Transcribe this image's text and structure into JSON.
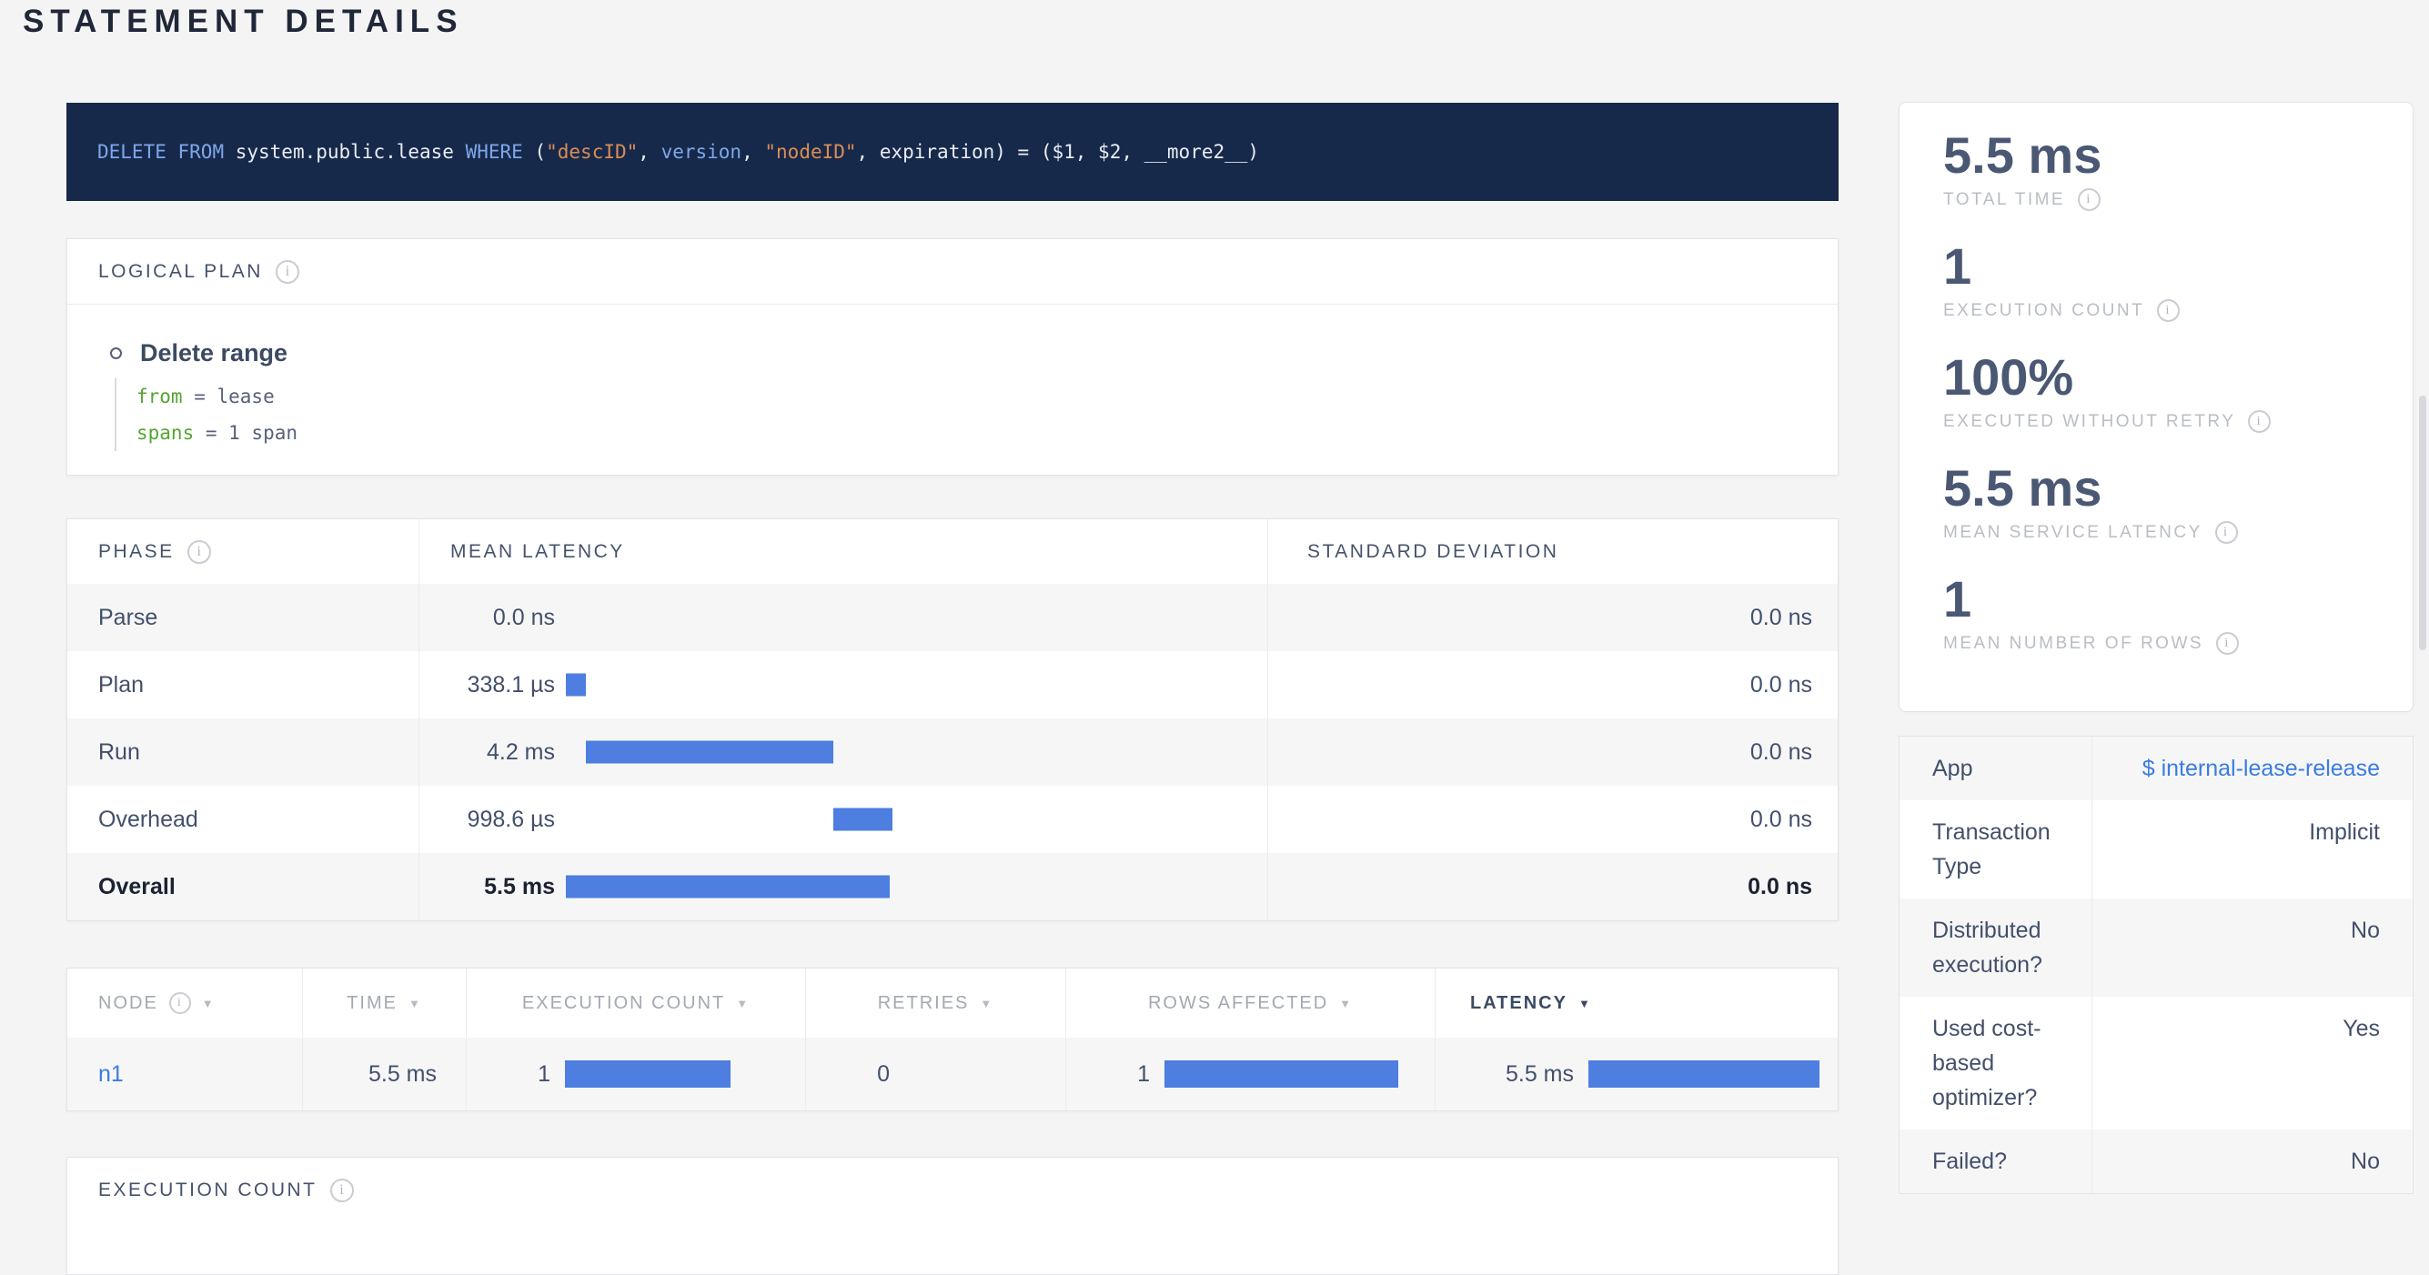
{
  "colors": {
    "accent_bar": "#4d7ee0",
    "link": "#3a7ce2",
    "sql_background": "#17294a",
    "sql_keyword": "#7ea7ea",
    "sql_string": "#d98e54",
    "plan_key_green": "#55a532"
  },
  "icons": {
    "info": "i",
    "sort_desc": "▼"
  },
  "page": {
    "title": "STATEMENT DETAILS"
  },
  "sql": {
    "tokens": [
      {
        "text": "DELETE",
        "type": "keyword"
      },
      {
        "text": " ",
        "type": "plain"
      },
      {
        "text": "FROM",
        "type": "keyword"
      },
      {
        "text": " system.public.lease ",
        "type": "plain"
      },
      {
        "text": "WHERE",
        "type": "keyword"
      },
      {
        "text": " (",
        "type": "plain"
      },
      {
        "text": "\"descID\"",
        "type": "string"
      },
      {
        "text": ", ",
        "type": "plain"
      },
      {
        "text": "version",
        "type": "keyword"
      },
      {
        "text": ", ",
        "type": "plain"
      },
      {
        "text": "\"nodeID\"",
        "type": "string"
      },
      {
        "text": ", expiration) = ($1, $2, __more2__)",
        "type": "plain"
      }
    ]
  },
  "logical_plan": {
    "title": "LOGICAL PLAN",
    "node": "Delete range",
    "attributes": [
      {
        "key": "from",
        "value": "lease"
      },
      {
        "key": "spans",
        "value": "1 span"
      }
    ]
  },
  "phase_table": {
    "headers": {
      "phase": "PHASE",
      "mean_latency": "MEAN LATENCY",
      "standard_deviation": "STANDARD DEVIATION"
    },
    "total_ms": 5.5,
    "rows": [
      {
        "phase": "Parse",
        "mean_latency": "0.0 ns",
        "ms": 0,
        "std_dev": "0.0 ns"
      },
      {
        "phase": "Plan",
        "mean_latency": "338.1 µs",
        "ms": 0.3381,
        "std_dev": "0.0 ns"
      },
      {
        "phase": "Run",
        "mean_latency": "4.2 ms",
        "ms": 4.2,
        "std_dev": "0.0 ns"
      },
      {
        "phase": "Overhead",
        "mean_latency": "998.6 µs",
        "ms": 0.9986,
        "std_dev": "0.0 ns"
      },
      {
        "phase": "Overall",
        "mean_latency": "5.5 ms",
        "ms": 5.5,
        "std_dev": "0.0 ns"
      }
    ]
  },
  "node_table": {
    "headers": [
      {
        "label": "NODE",
        "info": true
      },
      {
        "label": "TIME"
      },
      {
        "label": "EXECUTION COUNT"
      },
      {
        "label": "RETRIES"
      },
      {
        "label": "ROWS AFFECTED"
      },
      {
        "label": "LATENCY",
        "active": true
      }
    ],
    "rows": [
      {
        "node": "n1",
        "time": "5.5 ms",
        "execution_count": "1",
        "retries": "0",
        "rows_affected": "1",
        "latency": "5.5 ms"
      }
    ]
  },
  "summary": {
    "items": [
      {
        "value": "5.5 ms",
        "label": "TOTAL TIME"
      },
      {
        "value": "1",
        "label": "EXECUTION COUNT"
      },
      {
        "value": "100%",
        "label": "EXECUTED WITHOUT RETRY"
      },
      {
        "value": "5.5 ms",
        "label": "MEAN SERVICE LATENCY"
      },
      {
        "value": "1",
        "label": "MEAN NUMBER OF ROWS"
      }
    ]
  },
  "details": {
    "rows": [
      {
        "label": "App",
        "value": "$ internal-lease-release",
        "is_link": true
      },
      {
        "label": "Transaction Type",
        "value": "Implicit"
      },
      {
        "label": "Distributed execution?",
        "value": "No"
      },
      {
        "label": "Used cost-based optimizer?",
        "value": "Yes"
      },
      {
        "label": "Failed?",
        "value": "No"
      }
    ]
  },
  "execution_count_section": {
    "title": "EXECUTION COUNT"
  }
}
